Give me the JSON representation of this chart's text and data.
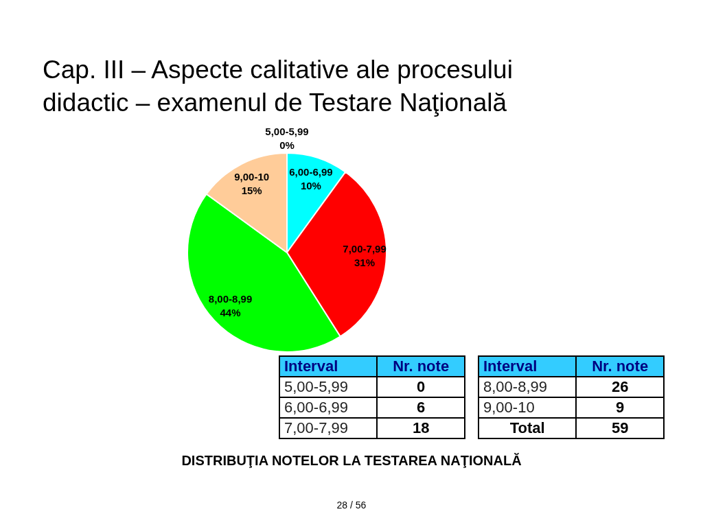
{
  "chart_data": {
    "type": "pie",
    "title": "Cap. III – Aspecte calitative ale procesului didactic – examenul de Testare Naţională",
    "categories": [
      "5,00-5,99",
      "6,00-6,99",
      "7,00-7,99",
      "8,00-8,99",
      "9,00-10"
    ],
    "values": [
      0,
      10,
      31,
      44,
      15
    ],
    "value_labels": [
      "0%",
      "10%",
      "31%",
      "44%",
      "15%"
    ],
    "colors": [
      "#ffff66",
      "#00ffff",
      "#ff0000",
      "#00ff00",
      "#ffcc99"
    ],
    "annotations": [
      "Interval",
      "Nr. note",
      "Total",
      "DISTRIBUŢIA NOTELOR LA TESTAREA NAŢIONALĂ",
      "28 / 56",
      "0",
      "6",
      "18",
      "26",
      "9",
      "59"
    ],
    "legend": false
  }
}
